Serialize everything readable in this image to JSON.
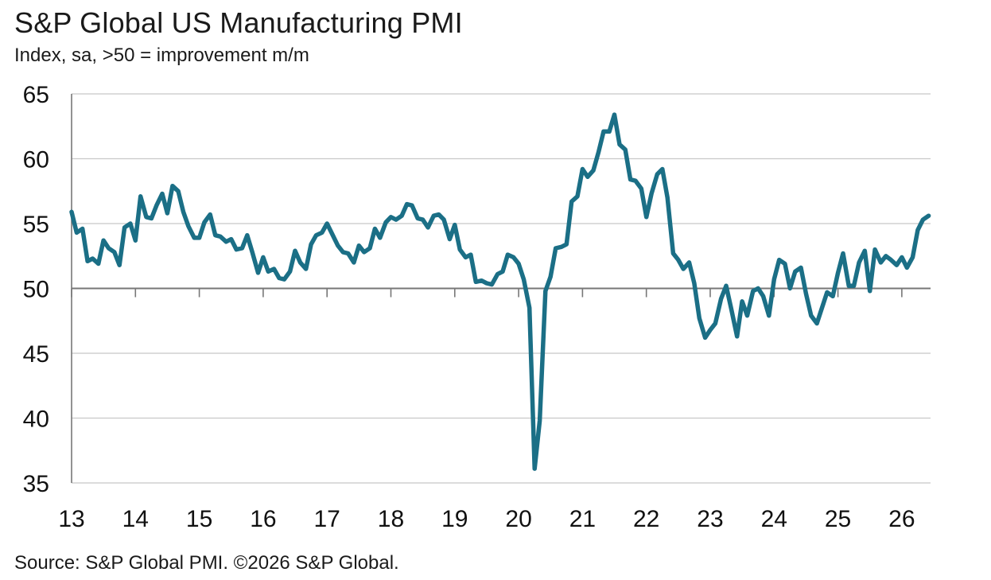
{
  "title": "S&P Global US Manufacturing PMI",
  "subtitle": "Index, sa, >50 = improvement m/m",
  "source": "Source: S&P Global PMI. ©2026 S&P Global.",
  "colors": {
    "line": "#1b6f86",
    "grid": "#c8c8c8",
    "axis": "#777777",
    "reference": "#777777"
  },
  "chart_data": {
    "type": "line",
    "title": "S&P Global US Manufacturing PMI",
    "ylabel": "Index, sa, >50 = improvement m/m",
    "xlabel": "",
    "ylim": [
      35,
      65
    ],
    "xlim": [
      2013.0,
      2026.45
    ],
    "y_ticks": [
      35,
      40,
      45,
      50,
      55,
      60,
      65
    ],
    "x_ticks": [
      {
        "label": "13",
        "value": 2013
      },
      {
        "label": "14",
        "value": 2014
      },
      {
        "label": "15",
        "value": 2015
      },
      {
        "label": "16",
        "value": 2016
      },
      {
        "label": "17",
        "value": 2017
      },
      {
        "label": "18",
        "value": 2018
      },
      {
        "label": "19",
        "value": 2019
      },
      {
        "label": "20",
        "value": 2020
      },
      {
        "label": "21",
        "value": 2021
      },
      {
        "label": "22",
        "value": 2022
      },
      {
        "label": "23",
        "value": 2023
      },
      {
        "label": "24",
        "value": 2024
      },
      {
        "label": "25",
        "value": 2025
      },
      {
        "label": "26",
        "value": 2026
      }
    ],
    "reference_line": 50,
    "grid": true,
    "series": [
      {
        "x": [
          2013.0,
          2013.08,
          2013.17,
          2013.25,
          2013.33,
          2013.42,
          2013.5,
          2013.58,
          2013.67,
          2013.75,
          2013.83,
          2013.92,
          2014.0,
          2014.08,
          2014.17,
          2014.25,
          2014.33,
          2014.42,
          2014.5,
          2014.58,
          2014.67,
          2014.75,
          2014.83,
          2014.92,
          2015.0,
          2015.08,
          2015.17,
          2015.25,
          2015.33,
          2015.42,
          2015.5,
          2015.58,
          2015.67,
          2015.75,
          2015.83,
          2015.92,
          2016.0,
          2016.08,
          2016.17,
          2016.25,
          2016.33,
          2016.42,
          2016.5,
          2016.58,
          2016.67,
          2016.75,
          2016.83,
          2016.92,
          2017.0,
          2017.08,
          2017.17,
          2017.25,
          2017.33,
          2017.42,
          2017.5,
          2017.58,
          2017.67,
          2017.75,
          2017.83,
          2017.92,
          2018.0,
          2018.08,
          2018.17,
          2018.25,
          2018.33,
          2018.42,
          2018.5,
          2018.58,
          2018.67,
          2018.75,
          2018.83,
          2018.92,
          2019.0,
          2019.08,
          2019.17,
          2019.25,
          2019.33,
          2019.42,
          2019.5,
          2019.58,
          2019.67,
          2019.75,
          2019.83,
          2019.92,
          2020.0,
          2020.08,
          2020.17,
          2020.25,
          2020.33,
          2020.42,
          2020.5,
          2020.58,
          2020.67,
          2020.75,
          2020.83,
          2020.92,
          2021.0,
          2021.08,
          2021.17,
          2021.25,
          2021.33,
          2021.42,
          2021.5,
          2021.58,
          2021.67,
          2021.75,
          2021.83,
          2021.92,
          2022.0,
          2022.08,
          2022.17,
          2022.25,
          2022.33,
          2022.42,
          2022.5,
          2022.58,
          2022.67,
          2022.75,
          2022.83,
          2022.92,
          2023.0,
          2023.08,
          2023.17,
          2023.25,
          2023.33,
          2023.42,
          2023.5,
          2023.58,
          2023.67,
          2023.75,
          2023.83,
          2023.92,
          2024.0,
          2024.08,
          2024.17,
          2024.25,
          2024.33,
          2024.42,
          2024.5,
          2024.58,
          2024.67,
          2024.75,
          2024.83,
          2024.92,
          2025.0,
          2025.08,
          2025.17,
          2025.25,
          2025.33,
          2025.42,
          2025.5,
          2025.58,
          2025.67,
          2025.75,
          2025.83,
          2025.92,
          2026.0,
          2026.08,
          2026.17,
          2026.25,
          2026.33,
          2026.42
        ],
        "y": [
          55.9,
          54.3,
          54.6,
          52.1,
          52.3,
          51.9,
          53.7,
          53.1,
          52.8,
          51.8,
          54.7,
          55.0,
          53.7,
          57.1,
          55.5,
          55.4,
          56.4,
          57.3,
          55.8,
          57.9,
          57.5,
          55.9,
          54.8,
          53.9,
          53.9,
          55.1,
          55.7,
          54.1,
          54.0,
          53.6,
          53.8,
          53.0,
          53.1,
          54.1,
          52.8,
          51.2,
          52.4,
          51.3,
          51.5,
          50.8,
          50.7,
          51.3,
          52.9,
          52.0,
          51.5,
          53.4,
          54.1,
          54.3,
          55.0,
          54.2,
          53.3,
          52.8,
          52.7,
          52.0,
          53.3,
          52.8,
          53.1,
          54.6,
          53.9,
          55.1,
          55.5,
          55.3,
          55.6,
          56.5,
          56.4,
          55.4,
          55.3,
          54.7,
          55.6,
          55.7,
          55.3,
          53.8,
          54.9,
          53.0,
          52.4,
          52.6,
          50.5,
          50.6,
          50.4,
          50.3,
          51.1,
          51.3,
          52.6,
          52.4,
          51.9,
          50.7,
          48.5,
          36.1,
          39.8,
          49.8,
          50.9,
          53.1,
          53.2,
          53.4,
          56.7,
          57.1,
          59.2,
          58.6,
          59.1,
          60.5,
          62.1,
          62.1,
          63.4,
          61.1,
          60.7,
          58.4,
          58.3,
          57.7,
          55.5,
          57.3,
          58.8,
          59.2,
          57.0,
          52.7,
          52.2,
          51.5,
          52.0,
          50.4,
          47.7,
          46.2,
          46.8,
          47.3,
          49.2,
          50.2,
          48.4,
          46.3,
          49.0,
          47.9,
          49.8,
          50.0,
          49.4,
          47.9,
          50.7,
          52.2,
          51.9,
          50.0,
          51.3,
          51.6,
          49.6,
          47.9,
          47.3,
          48.5,
          49.7,
          49.4,
          51.2,
          52.7,
          50.2,
          50.2,
          52.0,
          52.9,
          49.8,
          53.0,
          52.0,
          52.5,
          52.2,
          51.8,
          52.4,
          51.6,
          52.4,
          54.5,
          55.3,
          55.6
        ]
      }
    ]
  }
}
